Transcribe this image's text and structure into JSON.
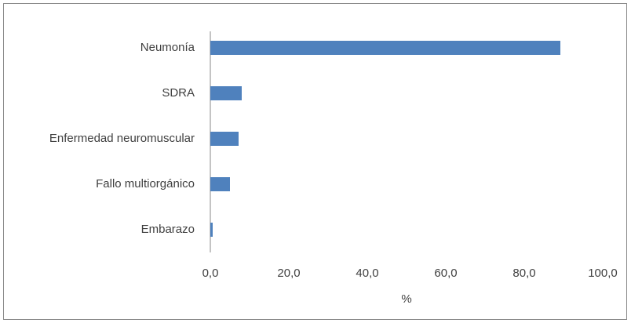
{
  "chart_data": {
    "type": "bar",
    "xlabel": "%",
    "categories": [
      "Neumonía",
      "SDRA",
      "Enfermedad neuromuscular",
      "Fallo multiorgánico",
      "Embarazo"
    ],
    "values": [
      89.2,
      8.0,
      7.2,
      5.0,
      0.6
    ],
    "color": "#4f81bd",
    "xlim": [
      0,
      100
    ],
    "xticks": [
      {
        "value": 0,
        "label": "0,0"
      },
      {
        "value": 20,
        "label": "20,0"
      },
      {
        "value": 40,
        "label": "40,0"
      },
      {
        "value": 60,
        "label": "60,0"
      },
      {
        "value": 80,
        "label": "80,0"
      },
      {
        "value": 100,
        "label": "100,0"
      }
    ],
    "grid": false
  }
}
